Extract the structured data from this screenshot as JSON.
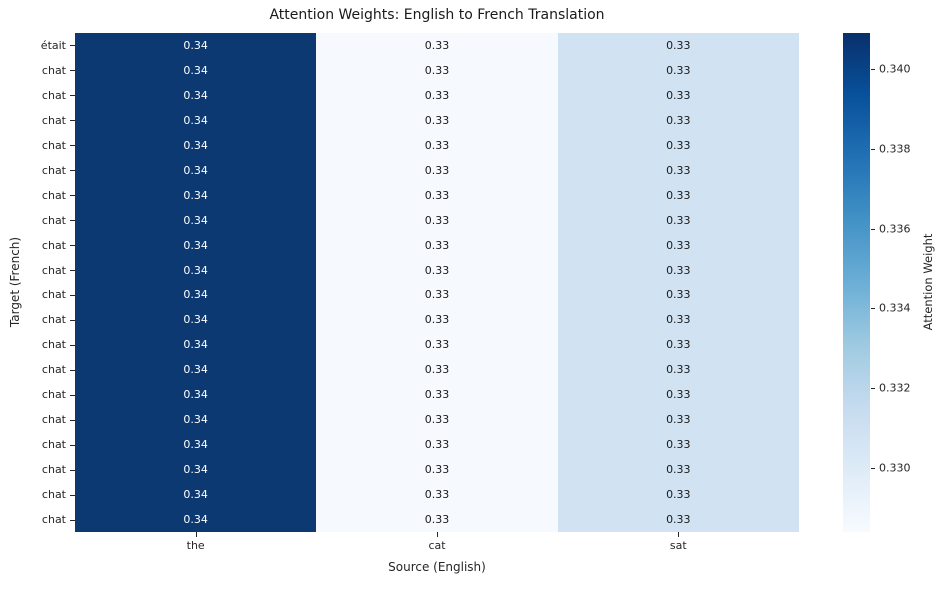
{
  "chart_data": {
    "type": "heatmap",
    "title": "Attention Weights: English to French Translation",
    "xlabel": "Source (English)",
    "ylabel": "Target (French)",
    "x_categories": [
      "the",
      "cat",
      "sat"
    ],
    "y_categories": [
      "était",
      "chat",
      "chat",
      "chat",
      "chat",
      "chat",
      "chat",
      "chat",
      "chat",
      "chat",
      "chat",
      "chat",
      "chat",
      "chat",
      "chat",
      "chat",
      "chat",
      "chat",
      "chat",
      "chat"
    ],
    "values": [
      [
        0.34,
        0.33,
        0.33
      ],
      [
        0.34,
        0.33,
        0.33
      ],
      [
        0.34,
        0.33,
        0.33
      ],
      [
        0.34,
        0.33,
        0.33
      ],
      [
        0.34,
        0.33,
        0.33
      ],
      [
        0.34,
        0.33,
        0.33
      ],
      [
        0.34,
        0.33,
        0.33
      ],
      [
        0.34,
        0.33,
        0.33
      ],
      [
        0.34,
        0.33,
        0.33
      ],
      [
        0.34,
        0.33,
        0.33
      ],
      [
        0.34,
        0.33,
        0.33
      ],
      [
        0.34,
        0.33,
        0.33
      ],
      [
        0.34,
        0.33,
        0.33
      ],
      [
        0.34,
        0.33,
        0.33
      ],
      [
        0.34,
        0.33,
        0.33
      ],
      [
        0.34,
        0.33,
        0.33
      ],
      [
        0.34,
        0.33,
        0.33
      ],
      [
        0.34,
        0.33,
        0.33
      ],
      [
        0.34,
        0.33,
        0.33
      ],
      [
        0.34,
        0.33,
        0.33
      ]
    ],
    "value_decimals": 2,
    "colormap": "Blues",
    "grid": false,
    "legend": false,
    "column_cell_colors": [
      "#0c3971",
      "#f6fafe",
      "#d1e2f2"
    ],
    "column_text_colors": [
      "#ffffff",
      "#1a1a1a",
      "#1a1a1a"
    ],
    "colorbar": {
      "label": "Attention Weight",
      "tick_labels": [
        "0.340",
        "0.338",
        "0.336",
        "0.334",
        "0.332",
        "0.330"
      ],
      "tick_values": [
        0.34,
        0.338,
        0.336,
        0.334,
        0.332,
        0.33
      ],
      "vmin": 0.3284,
      "vmax": 0.3409,
      "gradient_top_to_bottom": [
        "#08306b",
        "#08519c",
        "#2171b5",
        "#4292c6",
        "#6baed6",
        "#9ecae1",
        "#c6dbef",
        "#deebf7",
        "#f7fbff"
      ]
    }
  }
}
